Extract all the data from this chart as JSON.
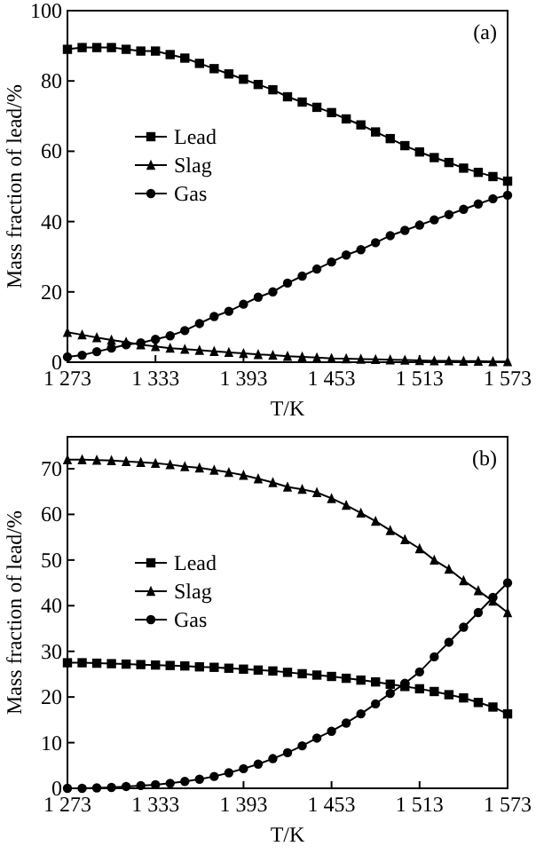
{
  "chart_data": [
    {
      "type": "line",
      "annotations": [
        "(a)"
      ],
      "xlabel": "T/K",
      "ylabel": "Mass fraction of lead/%",
      "x": [
        1273,
        1283,
        1293,
        1303,
        1313,
        1323,
        1333,
        1343,
        1353,
        1363,
        1373,
        1383,
        1393,
        1403,
        1413,
        1423,
        1433,
        1443,
        1453,
        1463,
        1473,
        1483,
        1493,
        1503,
        1513,
        1523,
        1533,
        1543,
        1553,
        1563,
        1573
      ],
      "xlim": [
        1273,
        1573
      ],
      "xticks": [
        {
          "value": 1273,
          "label": "1 273"
        },
        {
          "value": 1333,
          "label": "1 333"
        },
        {
          "value": 1393,
          "label": "1 393"
        },
        {
          "value": 1453,
          "label": "1 453"
        },
        {
          "value": 1513,
          "label": "1 513"
        },
        {
          "value": 1573,
          "label": "1 573"
        }
      ],
      "ylim": [
        0,
        100
      ],
      "yticks": [
        0,
        20,
        40,
        60,
        80,
        100
      ],
      "legend": "left",
      "grid": false,
      "line_style": "solid",
      "series": [
        {
          "name": "Lead",
          "color": "#000000",
          "marker": "square",
          "values": [
            89,
            89.5,
            89.5,
            89.5,
            89,
            88.5,
            88.5,
            87.5,
            86.5,
            85,
            83.5,
            82,
            80.5,
            79,
            77.5,
            75.5,
            74,
            72.5,
            71,
            69.2,
            67.5,
            65.5,
            63.6,
            61.6,
            59.8,
            58.2,
            56.8,
            55.2,
            54,
            52.8,
            51.5
          ]
        },
        {
          "name": "Slag",
          "color": "#000000",
          "marker": "triangle",
          "values": [
            8.5,
            7.8,
            7,
            6.3,
            5.7,
            5,
            4.5,
            4,
            3.7,
            3.4,
            3.1,
            2.8,
            2.5,
            2.2,
            2,
            1.7,
            1.5,
            1.3,
            1.1,
            1,
            0.9,
            0.8,
            0.7,
            0.6,
            0.5,
            0.4,
            0.4,
            0.3,
            0.3,
            0.2,
            0.2
          ]
        },
        {
          "name": "Gas",
          "color": "#000000",
          "marker": "circle",
          "values": [
            1.5,
            2,
            3,
            4,
            5,
            5.5,
            6.5,
            7.5,
            9,
            11,
            13,
            14.5,
            16.5,
            18.5,
            20,
            22.5,
            24.5,
            26.5,
            28.5,
            30.5,
            32,
            34,
            36,
            37.5,
            39,
            40.5,
            42,
            43.5,
            45,
            46.5,
            47.5
          ]
        }
      ]
    },
    {
      "type": "line",
      "annotations": [
        "(b)"
      ],
      "xlabel": "T/K",
      "ylabel": "Mass fraction of lead/%",
      "x": [
        1273,
        1283,
        1293,
        1303,
        1313,
        1323,
        1333,
        1343,
        1353,
        1363,
        1373,
        1383,
        1393,
        1403,
        1413,
        1423,
        1433,
        1443,
        1453,
        1463,
        1473,
        1483,
        1493,
        1503,
        1513,
        1523,
        1533,
        1543,
        1553,
        1563,
        1573
      ],
      "xlim": [
        1273,
        1573
      ],
      "xticks": [
        {
          "value": 1273,
          "label": "1 273"
        },
        {
          "value": 1333,
          "label": "1 333"
        },
        {
          "value": 1393,
          "label": "1 393"
        },
        {
          "value": 1453,
          "label": "1 453"
        },
        {
          "value": 1513,
          "label": "1 513"
        },
        {
          "value": 1573,
          "label": "1 573"
        }
      ],
      "ylim": [
        0,
        77
      ],
      "yticks": [
        0,
        10,
        20,
        30,
        40,
        50,
        60,
        70
      ],
      "legend": "left",
      "grid": false,
      "line_style": "solid",
      "series": [
        {
          "name": "Lead",
          "color": "#000000",
          "marker": "square",
          "values": [
            27.5,
            27.5,
            27.4,
            27.3,
            27.2,
            27.1,
            27,
            26.9,
            26.8,
            26.6,
            26.5,
            26.3,
            26.1,
            25.9,
            25.7,
            25.4,
            25.1,
            24.8,
            24.5,
            24.1,
            23.7,
            23.3,
            22.8,
            22.3,
            21.8,
            21.2,
            20.5,
            19.8,
            18.8,
            17.8,
            16.3
          ]
        },
        {
          "name": "Slag",
          "color": "#000000",
          "marker": "triangle",
          "values": [
            72,
            72,
            71.9,
            71.8,
            71.6,
            71.4,
            71.2,
            70.9,
            70.5,
            70.2,
            69.7,
            69.2,
            68.6,
            67.8,
            67,
            66,
            65.5,
            64.8,
            63.5,
            62,
            60.3,
            58.5,
            56.5,
            54.5,
            52.5,
            50,
            48,
            45.5,
            43.3,
            41,
            38.5
          ]
        },
        {
          "name": "Gas",
          "color": "#000000",
          "marker": "circle",
          "values": [
            0,
            0,
            0.1,
            0.2,
            0.4,
            0.6,
            0.8,
            1.1,
            1.5,
            2,
            2.6,
            3.4,
            4.3,
            5.3,
            6.5,
            7.8,
            9.3,
            11,
            12.5,
            14.3,
            16.3,
            18.5,
            20.8,
            23,
            25.5,
            28.8,
            32,
            35.3,
            38.5,
            41.8,
            45
          ]
        }
      ]
    }
  ]
}
